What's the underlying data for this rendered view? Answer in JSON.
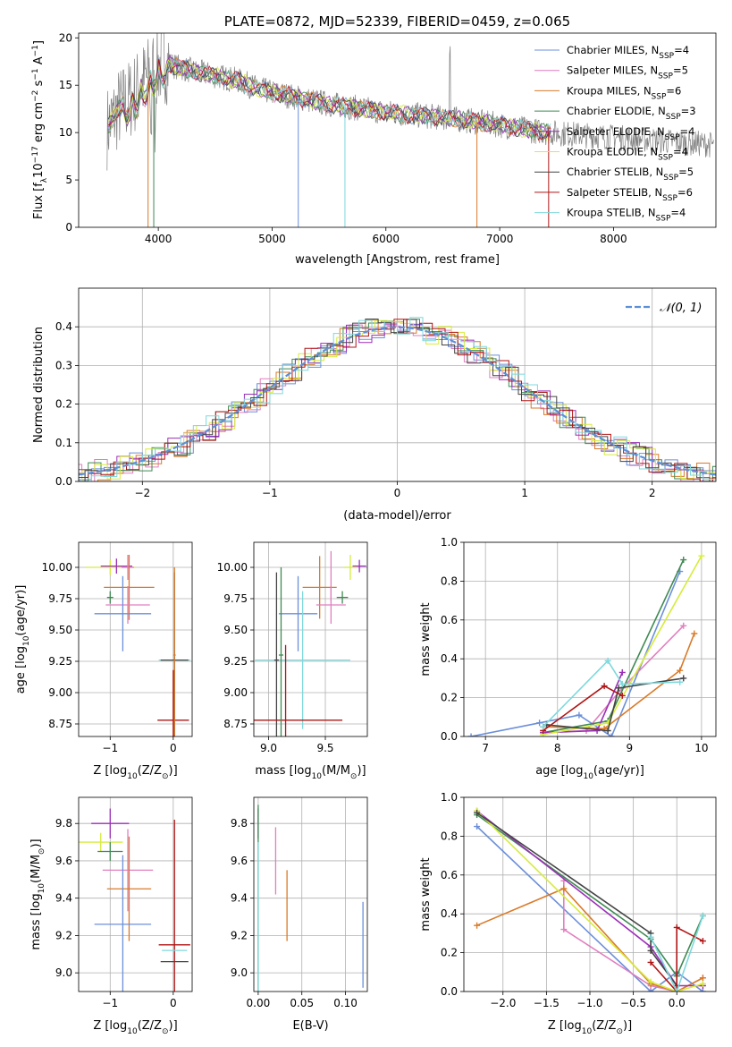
{
  "chart_data": [
    {
      "id": "spectrum",
      "type": "line",
      "title": "PLATE=0872, MJD=52339, FIBERID=0459, z=0.065",
      "xlabel": "wavelength [Angstrom, rest frame]",
      "ylabel": "Flux [f",
      "ylabel_sub": "λ",
      "ylabel_rest": "10",
      "ylabel_sup": "−17",
      "ylabel_units": " erg cm",
      "ylabel_sup2": "−2",
      "ylabel_units2": " s",
      "ylabel_sup3": "−1",
      "ylabel_units3": " A",
      "ylabel_sup4": "−1",
      "ylabel_end": "]",
      "xlim": [
        3300,
        8900
      ],
      "ylim": [
        0,
        20.5
      ],
      "xticks": [
        4000,
        5000,
        6000,
        7000,
        8000
      ],
      "yticks": [
        0,
        5,
        10,
        15,
        20
      ],
      "legend": "top-right",
      "series": [
        {
          "name": "Chabrier MILES, N",
          "sub": "SSP",
          "suffix": "=4",
          "color": "#6b8fd9"
        },
        {
          "name": "Salpeter MILES, N",
          "sub": "SSP",
          "suffix": "=5",
          "color": "#e07fbf"
        },
        {
          "name": "Kroupa MILES, N",
          "sub": "SSP",
          "suffix": "=6",
          "color": "#d97b2a"
        },
        {
          "name": "Chabrier ELODIE, N",
          "sub": "SSP",
          "suffix": "=3",
          "color": "#3f8a52"
        },
        {
          "name": "Salpeter ELODIE, N",
          "sub": "SSP",
          "suffix": "=4",
          "color": "#9b2fb8"
        },
        {
          "name": "Kroupa ELODIE, N",
          "sub": "SSP",
          "suffix": "=4",
          "color": "#d6ec3c"
        },
        {
          "name": "Chabrier STELIB, N",
          "sub": "SSP",
          "suffix": "=5",
          "color": "#444444"
        },
        {
          "name": "Salpeter STELIB, N",
          "sub": "SSP",
          "suffix": "=6",
          "color": "#b01515"
        },
        {
          "name": "Kroupa STELIB, N",
          "sub": "SSP",
          "suffix": "=4",
          "color": "#7fd8dc"
        }
      ],
      "data_color": "#808080",
      "continuum": {
        "x": [
          3550,
          3650,
          3750,
          3850,
          3950,
          4050,
          4150,
          4300,
          4500,
          4700,
          4900,
          5100,
          5300,
          5500,
          5800,
          6100,
          6400,
          6700,
          7000,
          7300,
          7450
        ],
        "y": [
          10.5,
          12.5,
          13.5,
          15,
          16.5,
          17.5,
          17,
          16.5,
          16,
          15.5,
          14.5,
          14,
          13.5,
          13,
          12.5,
          12,
          11.7,
          11.3,
          10.8,
          10.2,
          10
        ]
      }
    },
    {
      "id": "residuals",
      "type": "histogram",
      "xlabel": "(data-model)/error",
      "ylabel": "Normed distribution",
      "xlim": [
        -2.5,
        2.5
      ],
      "ylim": [
        0,
        0.5
      ],
      "xticks": [
        -2,
        -1,
        0,
        1,
        2
      ],
      "yticks": [
        0.0,
        0.1,
        0.2,
        0.3,
        0.4
      ],
      "legend_label": "𝒩(0, 1)",
      "legend_color": "#5b8fd8",
      "grid": true
    },
    {
      "id": "age_vs_Z",
      "type": "scatter",
      "xlabel": "Z [log",
      "xlabel_sub": "10",
      "xlabel_rest": "(Z/Z",
      "xlabel_sub2": "⊙",
      "xlabel_end": ")]",
      "ylabel": "age  [log",
      "ylabel_sub": "10",
      "ylabel_rest": "(age/yr)]",
      "xlim": [
        -1.5,
        0.3
      ],
      "ylim": [
        8.65,
        10.2
      ],
      "xticks": [
        -1,
        0
      ],
      "xtick_labels": [
        "−1",
        "0"
      ],
      "yticks": [
        8.75,
        9.0,
        9.25,
        9.5,
        9.75,
        10.0
      ],
      "ytick_labels": [
        "8.75",
        "9.00",
        "9.25",
        "9.50",
        "9.75",
        "10.00"
      ],
      "points": [
        {
          "x": -1.0,
          "y": 10.0,
          "xerr": 0.4,
          "yerr": 0.06,
          "color": "#d6ec3c"
        },
        {
          "x": -0.9,
          "y": 10.01,
          "xerr": 0.25,
          "yerr": 0.06,
          "color": "#9b2fb8"
        },
        {
          "x": -0.72,
          "y": 10.0,
          "xerr": 0.1,
          "yerr": 0.1,
          "color": "#e07fbf"
        },
        {
          "x": -0.7,
          "y": 9.84,
          "xerr": 0.4,
          "yerr": 0.26,
          "color": "#d97b2a"
        },
        {
          "x": -1.0,
          "y": 9.76,
          "xerr": 0.05,
          "yerr": 0.05,
          "color": "#3f8a52"
        },
        {
          "x": -0.72,
          "y": 9.7,
          "xerr": 0.35,
          "yerr": 0.15,
          "color": "#e07fbf"
        },
        {
          "x": -0.8,
          "y": 9.63,
          "xerr": 0.45,
          "yerr": 0.3,
          "color": "#6b8fd9"
        },
        {
          "x": 0.02,
          "y": 9.26,
          "xerr": 0.25,
          "yerr": 0.4,
          "color": "#7fd8dc"
        },
        {
          "x": 0.02,
          "y": 9.26,
          "xerr": 0.22,
          "yerr": 0.7,
          "color": "#444444"
        },
        {
          "x": 0.0,
          "y": 8.78,
          "xerr": 0.25,
          "yerr": 0.4,
          "color": "#b01515"
        },
        {
          "x": 0.02,
          "y": 9.3,
          "xerr": 0.02,
          "yerr": 0.7,
          "color": "#d97b2a"
        }
      ]
    },
    {
      "id": "age_vs_mass",
      "type": "scatter",
      "xlabel": "mass [log",
      "xlabel_sub": "10",
      "xlabel_rest": "(M/M",
      "xlabel_sub2": "⊙",
      "xlabel_end": ")]",
      "xlim": [
        8.87,
        9.87
      ],
      "ylim": [
        8.65,
        10.2
      ],
      "xticks": [
        9.0,
        9.5
      ],
      "xtick_labels": [
        "9.0",
        "9.5"
      ],
      "yticks": [
        8.75,
        9.0,
        9.25,
        9.5,
        9.75,
        10.0
      ],
      "ytick_labels": [
        "8.75",
        "9.00",
        "9.25",
        "9.50",
        "9.75",
        "10.00"
      ],
      "points": [
        {
          "x": 9.8,
          "y": 10.01,
          "xerr": 0.06,
          "yerr": 0.05,
          "color": "#9b2fb8"
        },
        {
          "x": 9.72,
          "y": 10.0,
          "xerr": 0.06,
          "yerr": 0.1,
          "color": "#d6ec3c"
        },
        {
          "x": 9.55,
          "y": 9.93,
          "xerr": 0.0,
          "yerr": 0.2,
          "color": "#e07fbf"
        },
        {
          "x": 9.45,
          "y": 9.84,
          "xerr": 0.15,
          "yerr": 0.25,
          "color": "#d97b2a"
        },
        {
          "x": 9.65,
          "y": 9.76,
          "xerr": 0.05,
          "yerr": 0.05,
          "color": "#3f8a52"
        },
        {
          "x": 9.55,
          "y": 9.7,
          "xerr": 0.13,
          "yerr": 0.15,
          "color": "#e07fbf"
        },
        {
          "x": 9.26,
          "y": 9.63,
          "xerr": 0.17,
          "yerr": 0.3,
          "color": "#6b8fd9"
        },
        {
          "x": 9.3,
          "y": 9.26,
          "xerr": 0.42,
          "yerr": 0.55,
          "color": "#7fd8dc"
        },
        {
          "x": 9.07,
          "y": 9.26,
          "xerr": 0.02,
          "yerr": 0.7,
          "color": "#444444"
        },
        {
          "x": 9.15,
          "y": 8.78,
          "xerr": 0.5,
          "yerr": 0.6,
          "color": "#b01515"
        },
        {
          "x": 9.11,
          "y": 9.3,
          "xerr": 0.02,
          "yerr": 0.7,
          "color": "#3f8a52"
        }
      ]
    },
    {
      "id": "weight_vs_age",
      "type": "line",
      "xlabel": "age  [log",
      "xlabel_sub": "10",
      "xlabel_rest": "(age/yr)]",
      "ylabel": "mass weight",
      "xlim": [
        6.7,
        10.2
      ],
      "ylim": [
        0,
        1.0
      ],
      "xticks": [
        7,
        8,
        9,
        10
      ],
      "yticks": [
        0.0,
        0.2,
        0.4,
        0.6,
        0.8,
        1.0
      ],
      "series": [
        {
          "color": "#6b8fd9",
          "x": [
            6.8,
            7.75,
            8.3,
            8.75,
            9.7
          ],
          "y": [
            0.0,
            0.07,
            0.11,
            0.0,
            0.85
          ]
        },
        {
          "color": "#e07fbf",
          "x": [
            7.8,
            8.4,
            8.9,
            9.75
          ],
          "y": [
            0.02,
            0.03,
            0.25,
            0.57
          ]
        },
        {
          "color": "#d97b2a",
          "x": [
            7.8,
            8.65,
            9.7,
            9.9
          ],
          "y": [
            0.05,
            0.04,
            0.34,
            0.53
          ]
        },
        {
          "color": "#3f8a52",
          "x": [
            7.8,
            8.7,
            9.75
          ],
          "y": [
            0.02,
            0.08,
            0.91
          ]
        },
        {
          "color": "#9b2fb8",
          "x": [
            7.8,
            8.55,
            8.9
          ],
          "y": [
            0.02,
            0.03,
            0.33
          ]
        },
        {
          "color": "#d6ec3c",
          "x": [
            7.8,
            8.7,
            10.0
          ],
          "y": [
            0.01,
            0.07,
            0.93
          ]
        },
        {
          "color": "#444444",
          "x": [
            7.85,
            8.7,
            8.85,
            9.75
          ],
          "y": [
            0.06,
            0.03,
            0.25,
            0.3
          ]
        },
        {
          "color": "#b01515",
          "x": [
            7.8,
            8.65,
            8.9
          ],
          "y": [
            0.03,
            0.26,
            0.21
          ]
        },
        {
          "color": "#7fd8dc",
          "x": [
            7.8,
            8.7,
            8.9,
            9.7
          ],
          "y": [
            0.05,
            0.39,
            0.27,
            0.28
          ]
        }
      ]
    },
    {
      "id": "mass_vs_Z",
      "type": "scatter",
      "xlabel": "Z [log",
      "xlabel_sub": "10",
      "xlabel_rest": "(Z/Z",
      "xlabel_sub2": "⊙",
      "xlabel_end": ")]",
      "ylabel": "mass [log",
      "ylabel_sub": "10",
      "ylabel_rest": "(M/M",
      "ylabel_sub2": "⊙",
      "ylabel_end": ")]",
      "xlim": [
        -1.5,
        0.3
      ],
      "ylim": [
        8.9,
        9.94
      ],
      "xticks": [
        -1,
        0
      ],
      "xtick_labels": [
        "−1",
        "0"
      ],
      "yticks": [
        9.0,
        9.2,
        9.4,
        9.6,
        9.8
      ],
      "ytick_labels": [
        "9.0",
        "9.2",
        "9.4",
        "9.6",
        "9.8"
      ],
      "points": [
        {
          "x": -1.0,
          "y": 9.8,
          "xerr": 0.3,
          "yerr": 0.08,
          "color": "#9b2fb8"
        },
        {
          "x": -1.15,
          "y": 9.7,
          "xerr": 0.35,
          "yerr": 0.05,
          "color": "#d6ec3c"
        },
        {
          "x": -1.0,
          "y": 9.65,
          "xerr": 0.2,
          "yerr": 0.05,
          "color": "#3f8a52"
        },
        {
          "x": -0.72,
          "y": 9.55,
          "xerr": 0.4,
          "yerr": 0.22,
          "color": "#e07fbf"
        },
        {
          "x": -0.7,
          "y": 9.45,
          "xerr": 0.35,
          "yerr": 0.28,
          "color": "#d97b2a"
        },
        {
          "x": -0.8,
          "y": 9.26,
          "xerr": 0.45,
          "yerr": 0.37,
          "color": "#6b8fd9"
        },
        {
          "x": 0.02,
          "y": 9.15,
          "xerr": 0.25,
          "yerr": 0.67,
          "color": "#b01515"
        },
        {
          "x": 0.02,
          "y": 9.12,
          "xerr": 0.2,
          "yerr": 0.0,
          "color": "#7fd8dc"
        },
        {
          "x": 0.02,
          "y": 9.06,
          "xerr": 0.22,
          "yerr": 0.0,
          "color": "#444444"
        }
      ]
    },
    {
      "id": "mass_vs_ebv",
      "type": "scatter",
      "xlabel": "E(B-V)",
      "xlim": [
        -0.005,
        0.125
      ],
      "ylim": [
        8.9,
        9.94
      ],
      "xticks": [
        0.0,
        0.05,
        0.1
      ],
      "xtick_labels": [
        "0.00",
        "0.05",
        "0.10"
      ],
      "yticks": [
        9.0,
        9.2,
        9.4,
        9.6,
        9.8
      ],
      "ytick_labels": [
        "9.0",
        "9.2",
        "9.4",
        "9.6",
        "9.8"
      ],
      "points": [
        {
          "x": 0.0,
          "y": 9.8,
          "xerr": 0.0,
          "yerr": 0.08,
          "color": "#9b2fb8"
        },
        {
          "x": 0.0,
          "y": 9.4,
          "xerr": 0.0,
          "yerr": 0.5,
          "color": "#3f8a52"
        },
        {
          "x": 0.0,
          "y": 9.3,
          "xerr": 0.0,
          "yerr": 0.4,
          "color": "#7fd8dc"
        },
        {
          "x": 0.02,
          "y": 9.6,
          "xerr": 0.0,
          "yerr": 0.18,
          "color": "#e07fbf"
        },
        {
          "x": 0.033,
          "y": 9.36,
          "xerr": 0.0,
          "yerr": 0.19,
          "color": "#d97b2a"
        },
        {
          "x": 0.12,
          "y": 9.15,
          "xerr": 0.0,
          "yerr": 0.23,
          "color": "#6b8fd9"
        }
      ]
    },
    {
      "id": "weight_vs_Z",
      "type": "line",
      "xlabel": "Z [log",
      "xlabel_sub": "10",
      "xlabel_rest": "(Z/Z",
      "xlabel_sub2": "⊙",
      "xlabel_end": ")]",
      "ylabel": "mass weight",
      "xlim": [
        -2.45,
        0.45
      ],
      "ylim": [
        0,
        1.0
      ],
      "xticks": [
        -2.0,
        -1.5,
        -1.0,
        -0.5,
        0.0
      ],
      "xtick_labels": [
        "−2.0",
        "−1.5",
        "−1.0",
        "−0.5",
        "0.0"
      ],
      "yticks": [
        0.0,
        0.2,
        0.4,
        0.6,
        0.8,
        1.0
      ],
      "series": [
        {
          "color": "#6b8fd9",
          "x": [
            -2.3,
            -0.3,
            0.0,
            0.3
          ],
          "y": [
            0.85,
            0.0,
            0.1,
            0.0
          ]
        },
        {
          "color": "#e07fbf",
          "x": [
            -1.3,
            -1.3,
            -0.3,
            0.0,
            0.3
          ],
          "y": [
            0.57,
            0.32,
            0.03,
            0.0,
            0.07
          ]
        },
        {
          "color": "#d97b2a",
          "x": [
            -2.3,
            -1.3,
            -0.3,
            0.0,
            0.3
          ],
          "y": [
            0.34,
            0.53,
            0.04,
            0.0,
            0.07
          ]
        },
        {
          "color": "#3f8a52",
          "x": [
            -2.3,
            -0.3,
            0.0,
            0.3
          ],
          "y": [
            0.91,
            0.27,
            0.08,
            0.39
          ]
        },
        {
          "color": "#9b2fb8",
          "x": [
            -2.3,
            -0.3,
            0.0,
            0.3
          ],
          "y": [
            0.93,
            0.23,
            0.03,
            0.03
          ]
        },
        {
          "color": "#d6ec3c",
          "x": [
            -2.3,
            -0.3,
            0.0,
            0.3
          ],
          "y": [
            0.93,
            0.05,
            0.0,
            0.04
          ]
        },
        {
          "color": "#444444",
          "x": [
            -2.3,
            -0.3,
            -0.3,
            0.0
          ],
          "y": [
            0.92,
            0.3,
            0.21,
            0.03
          ]
        },
        {
          "color": "#b01515",
          "x": [
            -0.3,
            0.0,
            0.0,
            0.3
          ],
          "y": [
            0.15,
            0.0,
            0.33,
            0.26
          ]
        },
        {
          "color": "#7fd8dc",
          "x": [
            -0.3,
            0.0,
            0.3
          ],
          "y": [
            0.28,
            0.0,
            0.39
          ]
        }
      ]
    }
  ]
}
